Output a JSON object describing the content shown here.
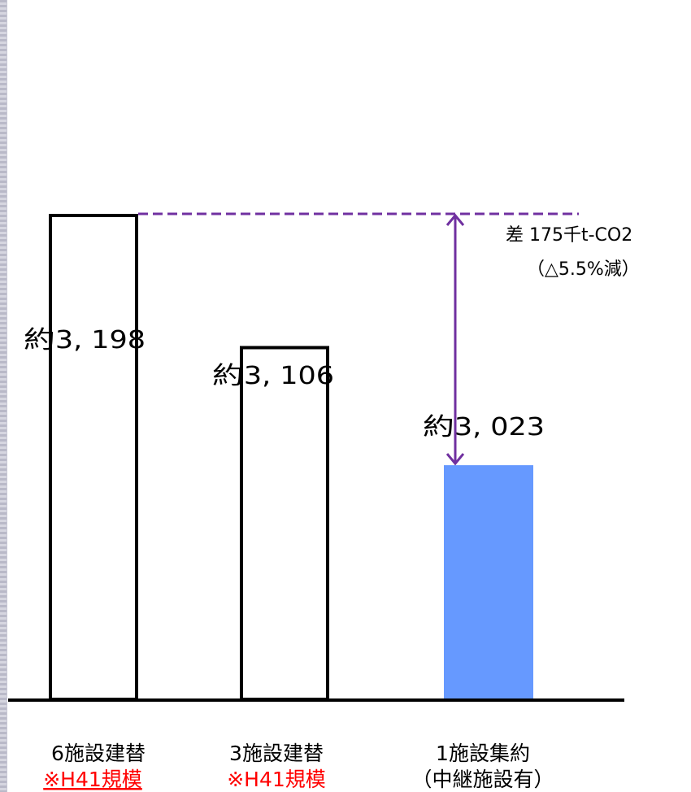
{
  "chart_data": {
    "type": "bar",
    "categories": [
      "6施設建替",
      "3施設建替",
      "1施設集約"
    ],
    "category_notes": [
      "※H41規模",
      "※H41規模",
      "（中継施設有）"
    ],
    "values": [
      3198,
      3106,
      3023
    ],
    "value_labels": [
      "約3, 198",
      "約3, 106",
      "約3, 023"
    ],
    "bar_styles": [
      "outline",
      "outline",
      "filled"
    ],
    "ylim": [
      0,
      3198
    ],
    "grid": false,
    "annotation": {
      "line1": "差  175千t-CO2",
      "line2": "（△5.5%減）"
    },
    "colors": {
      "outline": "#000000",
      "filled": "#6699ff",
      "dashed_line": "#7030a0",
      "arrow": "#7030a0",
      "note_text": "#ff0000"
    }
  }
}
